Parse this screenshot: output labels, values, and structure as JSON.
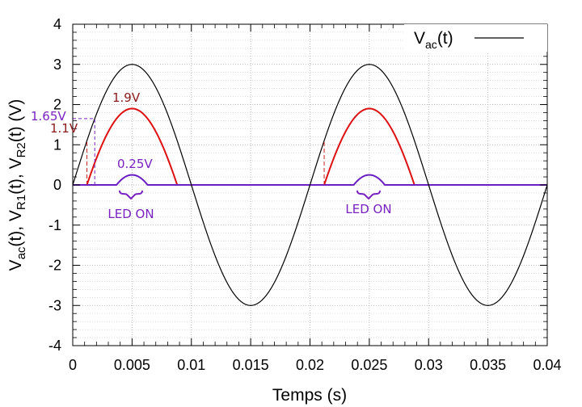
{
  "chart_data": {
    "type": "line",
    "xlabel": "Temps (s)",
    "ylabel": {
      "main": "V",
      "sub1": "ac",
      "mid1": "(t), V",
      "sub2": "R1",
      "mid2": "(t), V",
      "sub3": "R2",
      "tail": "(t) (V)"
    },
    "xlim": [
      0,
      0.04
    ],
    "ylim": [
      -4,
      4
    ],
    "x_ticks": [
      0,
      0.005,
      0.01,
      0.015,
      0.02,
      0.025,
      0.03,
      0.035,
      0.04
    ],
    "x_tick_labels": [
      "0",
      "0.005",
      "0.01",
      "0.015",
      "0.02",
      "0.025",
      "0.03",
      "0.035",
      "0.04"
    ],
    "y_ticks": [
      -4,
      -3,
      -2,
      -1,
      0,
      1,
      2,
      3,
      4
    ],
    "y_tick_labels": [
      "-4",
      "-3",
      "-2",
      "-1",
      "0",
      "1",
      "2",
      "3",
      "4"
    ],
    "grid": true,
    "legend": {
      "position": "top-right",
      "entries": [
        {
          "main": "V",
          "sub": "ac",
          "tail": "(t)"
        }
      ]
    },
    "series": [
      {
        "name_key": "vac",
        "color": "#000000",
        "amplitude": 3,
        "frequency_hz": 50,
        "offset": 0
      },
      {
        "name_key": "vr1",
        "color": "#dd1111",
        "amplitude": 3,
        "frequency_hz": 50,
        "offset": 1.1
      },
      {
        "name_key": "vr2",
        "color": "#6a1fc2",
        "amplitude": 3,
        "frequency_hz": 50,
        "offset": 2.75
      }
    ],
    "annotations": [
      {
        "text": "1.9V",
        "color": "#8b1a1a"
      },
      {
        "text": "1.65V",
        "color": "#7a22c0"
      },
      {
        "text": "1.1V",
        "color": "#8b1a1a"
      },
      {
        "text": "0.25V",
        "color": "#7a22c0"
      },
      {
        "text": "LED ON",
        "color": "#7a22c0"
      },
      {
        "text": "LED ON",
        "color": "#7a22c0"
      }
    ],
    "guide_levels": {
      "threshold_r1": 1.1,
      "threshold_r2": 1.65
    }
  }
}
